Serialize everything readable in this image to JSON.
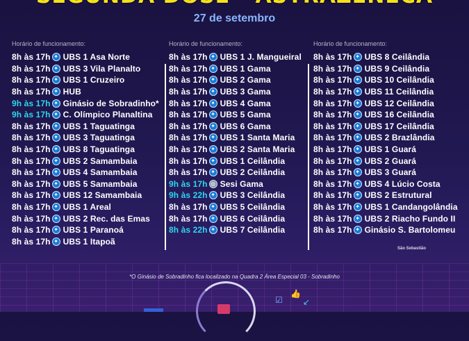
{
  "header": {
    "headline": "SEGUNDA DOSE - ASTRAZENECA",
    "date": "27 de setembro"
  },
  "columns": [
    {
      "hours_label": "Horário de funcionamento:",
      "rows": [
        {
          "time": "8h às 17h",
          "place": "UBS 1 Asa Norte",
          "time_color": "white",
          "icon": "walking-person-icon"
        },
        {
          "time": "8h às 17h",
          "place": "UBS 3 Vila Planalto",
          "time_color": "white",
          "icon": "walking-person-icon"
        },
        {
          "time": "8h às 17h",
          "place": "UBS 1 Cruzeiro",
          "time_color": "white",
          "icon": "walking-person-icon"
        },
        {
          "time": "8h às 17h",
          "place": "HUB",
          "time_color": "white",
          "icon": "walking-person-icon"
        },
        {
          "time": "9h às 17h",
          "place": "Ginásio de Sobradinho*",
          "time_color": "cyan",
          "icon": "walking-person-icon"
        },
        {
          "time": "9h às 17h",
          "place": "C. Olímpico Planaltina",
          "time_color": "cyan",
          "icon": "walking-person-icon"
        },
        {
          "time": "8h às 17h",
          "place": "UBS 1 Taguatinga",
          "time_color": "white",
          "icon": "walking-person-icon"
        },
        {
          "time": "8h às 17h",
          "place": "UBS 3 Taguatinga",
          "time_color": "white",
          "icon": "walking-person-icon"
        },
        {
          "time": "8h às 17h",
          "place": "UBS 8 Taguatinga",
          "time_color": "white",
          "icon": "walking-person-icon"
        },
        {
          "time": "8h às 17h",
          "place": "UBS 2 Samambaia",
          "time_color": "white",
          "icon": "walking-person-icon"
        },
        {
          "time": "8h às 17h",
          "place": "UBS 4 Samambaia",
          "time_color": "white",
          "icon": "walking-person-icon"
        },
        {
          "time": "8h às 17h",
          "place": "UBS 5 Samambaia",
          "time_color": "white",
          "icon": "walking-person-icon"
        },
        {
          "time": "8h às 17h",
          "place": "UBS 12 Samambaia",
          "time_color": "white",
          "icon": "walking-person-icon"
        },
        {
          "time": "8h às 17h",
          "place": "UBS 1 Areal",
          "time_color": "white",
          "icon": "walking-person-icon"
        },
        {
          "time": "8h às 17h",
          "place": "UBS 2 Rec. das Emas",
          "time_color": "white",
          "icon": "walking-person-icon"
        },
        {
          "time": "8h às 17h",
          "place": "UBS 1 Paranoá",
          "time_color": "white",
          "icon": "walking-person-icon"
        },
        {
          "time": "8h às 17h",
          "place": "UBS 1 Itapoã",
          "time_color": "white",
          "icon": "walking-person-icon"
        }
      ]
    },
    {
      "hours_label": "Horário de funcionamento:",
      "rows": [
        {
          "time": "8h às 17h",
          "place": "UBS 1 J. Mangueiral",
          "time_color": "white",
          "icon": "walking-person-icon"
        },
        {
          "time": "8h às 17h",
          "place": "UBS 1 Gama",
          "time_color": "white",
          "icon": "walking-person-icon"
        },
        {
          "time": "8h às 17h",
          "place": "UBS 2 Gama",
          "time_color": "white",
          "icon": "walking-person-icon"
        },
        {
          "time": "8h às 17h",
          "place": "UBS 3 Gama",
          "time_color": "white",
          "icon": "walking-person-icon"
        },
        {
          "time": "8h às 17h",
          "place": "UBS 4 Gama",
          "time_color": "white",
          "icon": "walking-person-icon"
        },
        {
          "time": "8h às 17h",
          "place": "UBS 5 Gama",
          "time_color": "white",
          "icon": "walking-person-icon"
        },
        {
          "time": "8h às 17h",
          "place": "UBS 6 Gama",
          "time_color": "white",
          "icon": "walking-person-icon"
        },
        {
          "time": "8h às 17h",
          "place": "UBS 1 Santa Maria",
          "time_color": "white",
          "icon": "walking-person-icon"
        },
        {
          "time": "8h às 17h",
          "place": "UBS 2 Santa Maria",
          "time_color": "white",
          "icon": "walking-person-icon"
        },
        {
          "time": "8h às 17h",
          "place": "UBS 1 Ceilândia",
          "time_color": "white",
          "icon": "walking-person-icon"
        },
        {
          "time": "8h às 17h",
          "place": "UBS 2 Ceilândia",
          "time_color": "white",
          "icon": "walking-person-icon"
        },
        {
          "time": "9h às 17h",
          "place": "Sesi Gama",
          "time_color": "cyan",
          "icon": "globe-icon"
        },
        {
          "time": "9h às 22h",
          "place": "UBS 3 Ceilândia",
          "time_color": "cyan",
          "icon": "walking-person-icon"
        },
        {
          "time": "8h às 17h",
          "place": "UBS 5 Ceilândia",
          "time_color": "white",
          "icon": "walking-person-icon"
        },
        {
          "time": "8h às 17h",
          "place": "UBS 6 Ceilândia",
          "time_color": "white",
          "icon": "walking-person-icon"
        },
        {
          "time": "8h às 22h",
          "place": "UBS 7 Ceilândia",
          "time_color": "cyan",
          "icon": "walking-person-icon"
        }
      ]
    },
    {
      "hours_label": "Horário de funcionamento:",
      "rows": [
        {
          "time": "8h às 17h",
          "place": "UBS 8 Ceilândia",
          "time_color": "white",
          "icon": "walking-person-icon"
        },
        {
          "time": "8h às 17h",
          "place": "UBS 9 Ceilândia",
          "time_color": "white",
          "icon": "walking-person-icon"
        },
        {
          "time": "8h às 17h",
          "place": "UBS 10 Ceilândia",
          "time_color": "white",
          "icon": "walking-person-icon"
        },
        {
          "time": "8h às 17h",
          "place": "UBS 11 Ceilândia",
          "time_color": "white",
          "icon": "walking-person-icon"
        },
        {
          "time": "8h às 17h",
          "place": "UBS 12 Ceilândia",
          "time_color": "white",
          "icon": "walking-person-icon"
        },
        {
          "time": "8h às 17h",
          "place": "UBS 16 Ceilândia",
          "time_color": "white",
          "icon": "walking-person-icon"
        },
        {
          "time": "8h às 17h",
          "place": "UBS 17 Ceilândia",
          "time_color": "white",
          "icon": "walking-person-icon"
        },
        {
          "time": "8h às 17h",
          "place": "UBS 2 Brazlândia",
          "time_color": "white",
          "icon": "walking-person-icon"
        },
        {
          "time": "8h às 17h",
          "place": "UBS 1 Guará",
          "time_color": "white",
          "icon": "walking-person-icon"
        },
        {
          "time": "8h às 17h",
          "place": "UBS 2 Guará",
          "time_color": "white",
          "icon": "walking-person-icon"
        },
        {
          "time": "8h às 17h",
          "place": "UBS 3 Guará",
          "time_color": "white",
          "icon": "walking-person-icon"
        },
        {
          "time": "8h às 17h",
          "place": "UBS 4 Lúcio Costa",
          "time_color": "white",
          "icon": "walking-person-icon"
        },
        {
          "time": "8h às 17h",
          "place": "UBS 2 Estrutural",
          "time_color": "white",
          "icon": "walking-person-icon"
        },
        {
          "time": "8h às 17h",
          "place": "UBS 1 Candangolândia",
          "time_color": "white",
          "icon": "walking-person-icon"
        },
        {
          "time": "8h às 17h",
          "place": "UBS 2 Riacho Fundo II",
          "time_color": "white",
          "icon": "walking-person-icon"
        },
        {
          "time": "8h às 17h",
          "place": "Ginásio S. Bartolomeu",
          "time_color": "white",
          "icon": "walking-person-icon"
        }
      ]
    }
  ],
  "notes": {
    "sao_sebastiao": "São Sebastião",
    "footnote": "*O Ginásio de Sobradinho fica localizado na Quadra 2 Área Especial 03 - Sobradinho"
  },
  "colors": {
    "headline": "#f6e21b",
    "date": "#8ab6ff",
    "time_cyan": "#2fd6ef",
    "icon_blue": "#1779d6"
  }
}
